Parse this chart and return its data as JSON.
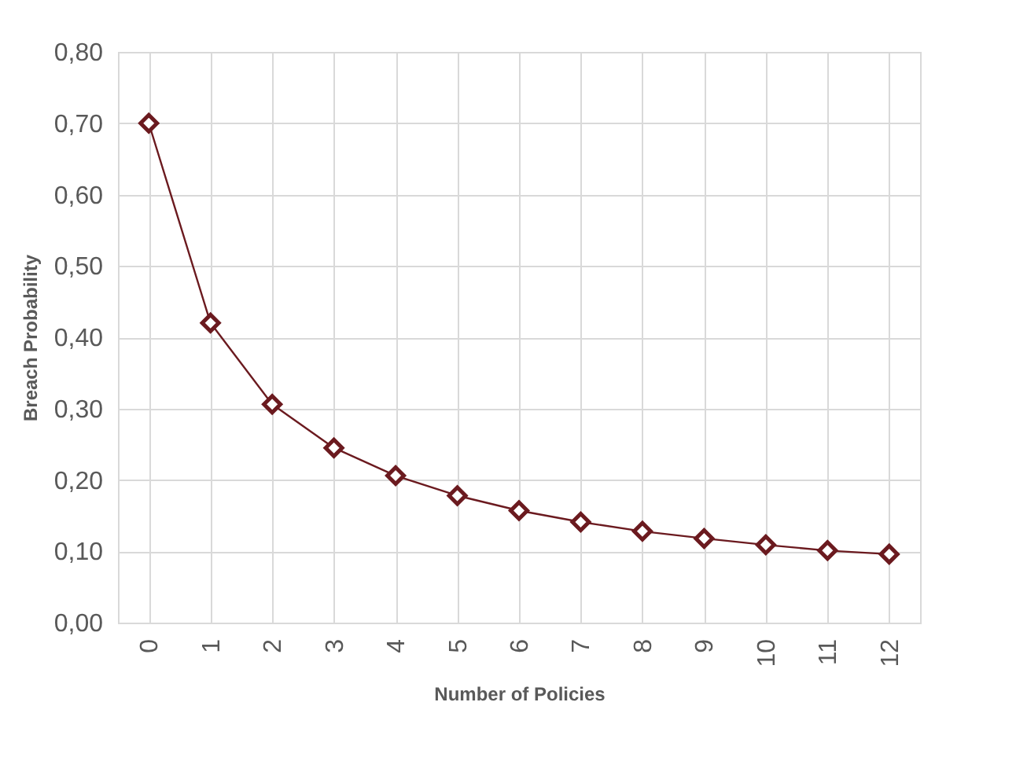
{
  "chart_data": {
    "type": "line",
    "xlabel": "Number of Policies",
    "ylabel": "Breach Probability",
    "categories": [
      "0",
      "1",
      "2",
      "3",
      "4",
      "5",
      "6",
      "7",
      "8",
      "9",
      "10",
      "11",
      "12"
    ],
    "series": [
      {
        "color": "#6b1a1f",
        "values": [
          0.7,
          0.42,
          0.306,
          0.245,
          0.206,
          0.178,
          0.157,
          0.141,
          0.128,
          0.118,
          0.109,
          0.101,
          0.096
        ]
      }
    ],
    "ylim": [
      0,
      0.8
    ],
    "yticks": [
      {
        "value": 0,
        "label": "0,00"
      },
      {
        "value": 0.1,
        "label": "0,10"
      },
      {
        "value": 0.2,
        "label": "0,20"
      },
      {
        "value": 0.3,
        "label": "0,30"
      },
      {
        "value": 0.4,
        "label": "0,40"
      },
      {
        "value": 0.5,
        "label": "0,50"
      },
      {
        "value": 0.6,
        "label": "0,60"
      },
      {
        "value": 0.7,
        "label": "0,70"
      },
      {
        "value": 0.8,
        "label": "0,80"
      }
    ],
    "grid": true,
    "marker": "diamond",
    "line_style": "solid",
    "legend": false
  }
}
